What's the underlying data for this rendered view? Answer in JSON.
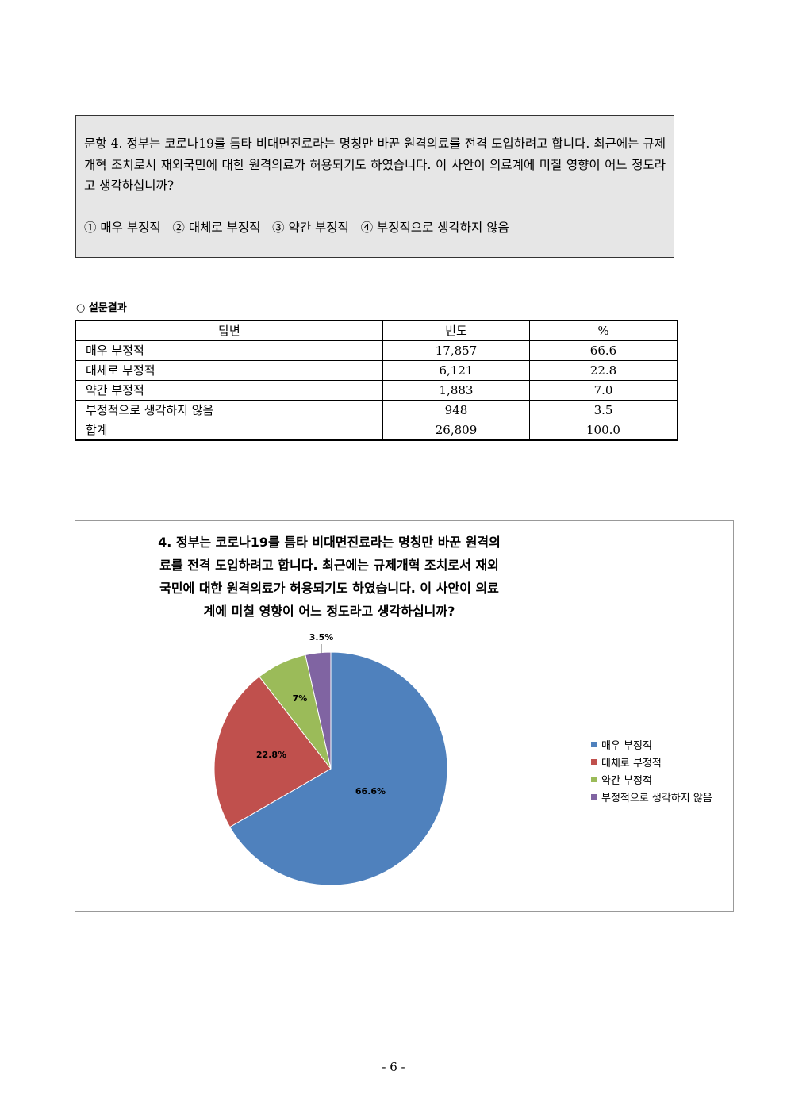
{
  "question": {
    "text": "문항 4. 정부는 코로나19를 틈타 비대면진료라는 명칭만 바꾼 원격의료를 전격 도입하려고 합니다. 최근에는 규제개혁 조치로서 재외국민에 대한 원격의료가 허용되기도 하였습니다. 이 사안이 의료계에 미칠 영향이 어느 정도라고 생각하십니까?",
    "options": "① 매우 부정적   ② 대체로 부정적   ③ 약간 부정적   ④ 부정적으로 생각하지 않음"
  },
  "results_title": "○ 설문결과",
  "table": {
    "headers": [
      "답변",
      "빈도",
      "%"
    ],
    "rows": [
      [
        "매우 부정적",
        "17,857",
        "66.6"
      ],
      [
        "대체로 부정적",
        "6,121",
        "22.8"
      ],
      [
        "약간 부정적",
        "1,883",
        "7.0"
      ],
      [
        "부정적으로 생각하지 않음",
        "948",
        "3.5"
      ],
      [
        "합계",
        "26,809",
        "100.0"
      ]
    ]
  },
  "chart_data": {
    "type": "pie",
    "title": "4. 정부는 코로나19를 틈타 비대면진료라는 명칭만 바꾼 원격의료를 전격 도입하려고 합니다. 최근에는 규제개혁 조치로서 재외국민에 대한 원격의료가 허용되기도 하였습니다. 이 사안이 의료계에 미칠 영향이 어느 정도라고 생각하십니까?",
    "categories": [
      "매우 부정적",
      "대체로 부정적",
      "약간 부정적",
      "부정적으로 생각하지 않음"
    ],
    "values": [
      66.6,
      22.8,
      7.0,
      3.5
    ],
    "data_labels": [
      "66.6%",
      "22.8%",
      "7%",
      "3.5%"
    ],
    "colors": [
      "#4f81bd",
      "#c0504d",
      "#9bbb59",
      "#8064a2"
    ],
    "legend": "right"
  },
  "page_number": "- 6 -"
}
